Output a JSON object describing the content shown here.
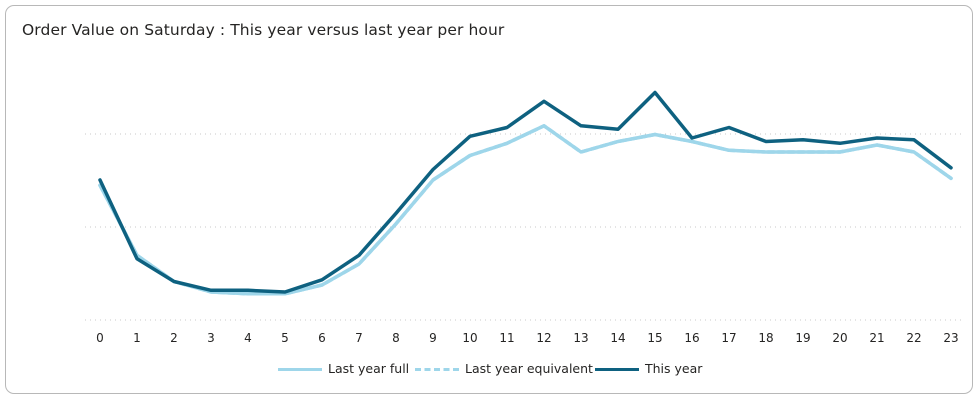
{
  "chart_data": {
    "type": "line",
    "title": "Order Value on Saturday : This year versus last year per hour",
    "xlabel": "",
    "ylabel": "",
    "categories": [
      "0",
      "1",
      "2",
      "3",
      "4",
      "5",
      "6",
      "7",
      "8",
      "9",
      "10",
      "11",
      "12",
      "13",
      "14",
      "15",
      "16",
      "17",
      "18",
      "19",
      "20",
      "21",
      "22",
      "23"
    ],
    "ylim": [
      0,
      100
    ],
    "grid": true,
    "legend_position": "bottom",
    "series": [
      {
        "name": "Last year full",
        "color": "#9ed6ea",
        "style": "solid",
        "values": [
          67,
          27,
          12,
          6,
          5,
          5,
          10,
          22,
          45,
          70,
          84,
          91,
          101,
          86,
          92,
          96,
          92,
          87,
          86,
          86,
          86,
          90,
          86,
          71
        ]
      },
      {
        "name": "Last year equivalent",
        "color": "#9ed6ea",
        "style": "dashed",
        "values": [
          67,
          27,
          12,
          6,
          5,
          5,
          10,
          22,
          45,
          70,
          84,
          91,
          101,
          86,
          92,
          96,
          92,
          87,
          86,
          86,
          86,
          90,
          86,
          71
        ]
      },
      {
        "name": "This year",
        "color": "#0e6180",
        "style": "solid",
        "values": [
          70,
          25,
          12,
          7,
          7,
          6,
          13,
          27,
          51,
          76,
          95,
          100,
          115,
          101,
          99,
          120,
          94,
          100,
          92,
          93,
          91,
          94,
          93,
          77
        ]
      }
    ]
  }
}
